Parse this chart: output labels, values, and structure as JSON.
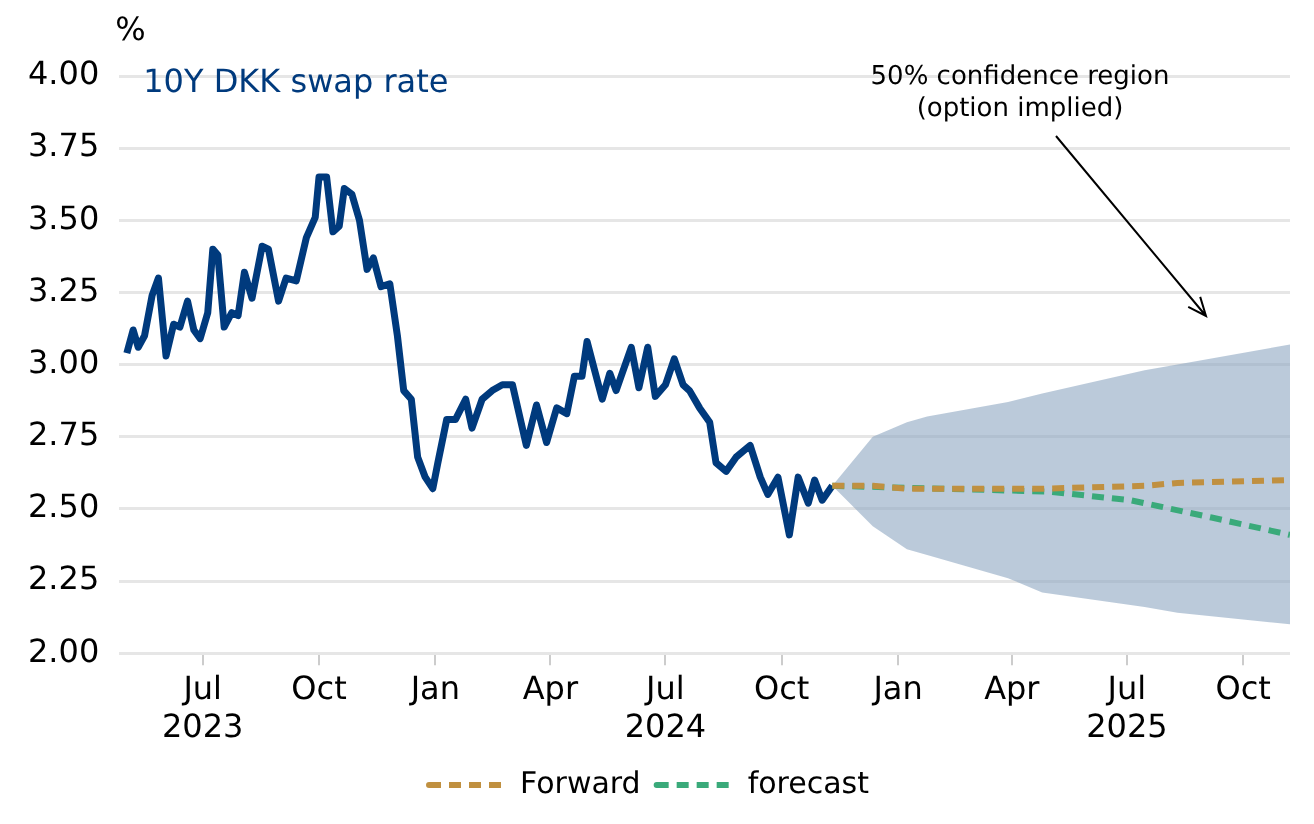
{
  "chart_data": {
    "type": "line",
    "title": "10Y DKK swap rate",
    "ylabel": "%",
    "xlim": [
      "2023-04-26",
      "2025-11-07"
    ],
    "xticks": [
      {
        "value": "2023-07-01",
        "label": "Jul\n2023"
      },
      {
        "value": "2023-10-01",
        "label": "Oct"
      },
      {
        "value": "2024-01-01",
        "label": "Jan"
      },
      {
        "value": "2024-04-01",
        "label": "Apr"
      },
      {
        "value": "2024-07-01",
        "label": "Jul\n2024"
      },
      {
        "value": "2024-10-01",
        "label": "Oct"
      },
      {
        "value": "2025-01-01",
        "label": "Jan"
      },
      {
        "value": "2025-04-01",
        "label": "Apr"
      },
      {
        "value": "2025-07-01",
        "label": "Jul\n2025"
      },
      {
        "value": "2025-10-01",
        "label": "Oct"
      }
    ],
    "ylim": [
      2,
      4
    ],
    "yticks": [
      {
        "value": 2,
        "label": "2.00"
      },
      {
        "value": 2.25,
        "label": "2.25"
      },
      {
        "value": 2.5,
        "label": "2.50"
      },
      {
        "value": 2.75,
        "label": "2.75"
      },
      {
        "value": 3,
        "label": "3.00"
      },
      {
        "value": 3.25,
        "label": "3.25"
      },
      {
        "value": 3.5,
        "label": "3.50"
      },
      {
        "value": 3.75,
        "label": "3.75"
      },
      {
        "value": 4,
        "label": "4.00"
      }
    ],
    "grid": "y",
    "legend": "bottom",
    "marker": "none",
    "annotations": [
      "50% confidence region\n(option implied)"
    ],
    "series": [
      {
        "color": "#003a7d",
        "line_style": "solid",
        "x": [
          "2023-05-02",
          "2023-05-07",
          "2023-05-11",
          "2023-05-16",
          "2023-05-22",
          "2023-05-27",
          "2023-06-02",
          "2023-06-08",
          "2023-06-13",
          "2023-06-19",
          "2023-06-24",
          "2023-06-29",
          "2023-07-05",
          "2023-07-09",
          "2023-07-13",
          "2023-07-18",
          "2023-07-24",
          "2023-07-29",
          "2023-08-03",
          "2023-08-09",
          "2023-08-17",
          "2023-08-22",
          "2023-08-30",
          "2023-09-05",
          "2023-09-13",
          "2023-09-21",
          "2023-09-28",
          "2023-10-01",
          "2023-10-07",
          "2023-10-12",
          "2023-10-17",
          "2023-10-21",
          "2023-10-27",
          "2023-11-02",
          "2023-11-08",
          "2023-11-13",
          "2023-11-19",
          "2023-11-26",
          "2023-12-02",
          "2023-12-07",
          "2023-12-13",
          "2023-12-18",
          "2023-12-24",
          "2023-12-30",
          "2024-01-03",
          "2024-01-10",
          "2024-01-17",
          "2024-01-25",
          "2024-01-30",
          "2024-02-07",
          "2024-02-15",
          "2024-02-23",
          "2024-03-02",
          "2024-03-13",
          "2024-03-21",
          "2024-03-29",
          "2024-04-06",
          "2024-04-14",
          "2024-04-20",
          "2024-04-26",
          "2024-04-30",
          "2024-05-06",
          "2024-05-12",
          "2024-05-18",
          "2024-05-23",
          "2024-05-27",
          "2024-06-04",
          "2024-06-10",
          "2024-06-17",
          "2024-06-23",
          "2024-07-01",
          "2024-07-08",
          "2024-07-15",
          "2024-07-20",
          "2024-07-28",
          "2024-08-05",
          "2024-08-10",
          "2024-08-18",
          "2024-08-26",
          "2024-09-06",
          "2024-09-14",
          "2024-09-20",
          "2024-09-28",
          "2024-10-07",
          "2024-10-14",
          "2024-10-22",
          "2024-10-27",
          "2024-11-02",
          "2024-11-10"
        ],
        "values": [
          3.04,
          3.12,
          3.06,
          3.1,
          3.24,
          3.3,
          3.03,
          3.14,
          3.13,
          3.22,
          3.12,
          3.09,
          3.18,
          3.4,
          3.38,
          3.13,
          3.18,
          3.17,
          3.32,
          3.23,
          3.41,
          3.4,
          3.22,
          3.3,
          3.29,
          3.44,
          3.51,
          3.65,
          3.65,
          3.46,
          3.48,
          3.61,
          3.59,
          3.5,
          3.33,
          3.37,
          3.27,
          3.28,
          3.1,
          2.91,
          2.88,
          2.68,
          2.61,
          2.57,
          2.66,
          2.81,
          2.81,
          2.88,
          2.78,
          2.88,
          2.91,
          2.93,
          2.93,
          2.72,
          2.86,
          2.73,
          2.85,
          2.83,
          2.96,
          2.96,
          3.08,
          2.98,
          2.88,
          2.97,
          2.91,
          2.96,
          3.06,
          2.92,
          3.06,
          2.89,
          2.93,
          3.02,
          2.93,
          2.91,
          2.85,
          2.8,
          2.66,
          2.63,
          2.68,
          2.72,
          2.61,
          2.55,
          2.61,
          2.41,
          2.61,
          2.52,
          2.6,
          2.53,
          2.58
        ]
      },
      {
        "name": "forecast",
        "color": "#3aaa7a",
        "line_style": "dashed",
        "x": [
          "2024-11-10",
          "2025-02-04",
          "2025-04-30",
          "2025-07-04",
          "2025-09-06",
          "2025-11-07"
        ],
        "values": [
          2.58,
          2.57,
          2.56,
          2.53,
          2.47,
          2.41
        ]
      },
      {
        "name": "Forward",
        "color": "#c09040",
        "line_style": "dashed",
        "x": [
          "2024-11-10",
          "2024-12-12",
          "2025-01-08",
          "2025-01-24",
          "2025-03-29",
          "2025-04-25",
          "2025-07-15",
          "2025-08-10",
          "2025-11-07"
        ],
        "values": [
          2.58,
          2.58,
          2.57,
          2.57,
          2.57,
          2.57,
          2.58,
          2.59,
          2.6
        ],
        "lower": [
          2.58,
          2.44,
          2.36,
          2.34,
          2.26,
          2.21,
          2.16,
          2.14,
          2.1
        ],
        "upper": [
          2.58,
          2.75,
          2.8,
          2.82,
          2.87,
          2.9,
          2.98,
          3.0,
          3.07
        ]
      }
    ]
  }
}
